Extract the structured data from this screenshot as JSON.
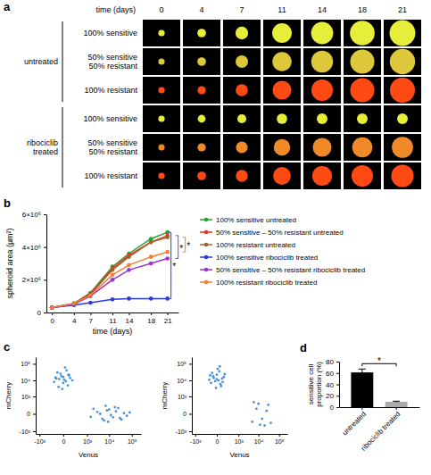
{
  "chart_data": [
    {
      "type": "image_grid",
      "panel": "a",
      "x_label": "time (days)",
      "x": [
        0,
        4,
        7,
        11,
        14,
        18,
        21
      ],
      "groups": [
        "untreated",
        "ribociclib treated"
      ],
      "rows": [
        "100% sensitive",
        "50% sensitive 50% resistant",
        "100% resistant",
        "100% sensitive",
        "50% sensitive 50% resistant",
        "100% resistant"
      ],
      "colors": [
        "#e6ee3a",
        "#dcc83a",
        "#ff4a14",
        "#e6ee3a",
        "#f08a28",
        "#ff4a14"
      ]
    },
    {
      "type": "line",
      "panel": "b",
      "x_label": "time (days)",
      "y_label": "spheroid area (µm²)",
      "x": [
        0,
        4,
        7,
        11,
        14,
        18,
        21
      ],
      "xlim": [
        -1,
        23
      ],
      "xticks": [
        0,
        4,
        7,
        11,
        14,
        18,
        21
      ],
      "ylim": [
        0,
        6000000
      ],
      "yticks": [
        0,
        {
          "value": 2000000,
          "label": "2×10⁶"
        },
        {
          "value": 4000000,
          "label": "4×10⁶"
        },
        {
          "value": 6000000,
          "label": "6×10⁶"
        }
      ],
      "legend": "right",
      "annotations": [
        "*",
        "*",
        "*"
      ],
      "series": [
        {
          "name": "100% sensitive untreated",
          "color": "#2ca02c",
          "values": [
            300000,
            550000,
            1200000,
            2800000,
            3600000,
            4500000,
            4900000
          ]
        },
        {
          "name": "50% sensitive – 50% resistant untreated",
          "color": "#e8312a",
          "values": [
            300000,
            550000,
            1150000,
            2700000,
            3500000,
            4300000,
            4700000
          ]
        },
        {
          "name": "100% resistant untreated",
          "color": "#a0642a",
          "values": [
            300000,
            500000,
            1100000,
            2600000,
            3400000,
            4300000,
            4600000
          ]
        },
        {
          "name": "100% sensitive ribociclib treated",
          "color": "#2b3bd6",
          "values": [
            300000,
            450000,
            600000,
            800000,
            850000,
            850000,
            850000
          ]
        },
        {
          "name": "50% sensitive – 50% resistant ribociclib treated",
          "color": "#a030d0",
          "values": [
            300000,
            500000,
            1000000,
            2000000,
            2600000,
            3000000,
            3300000
          ]
        },
        {
          "name": "100% resistant ribociclib treated",
          "color": "#f08030",
          "values": [
            300000,
            550000,
            1050000,
            2300000,
            2900000,
            3400000,
            3700000
          ]
        }
      ]
    },
    {
      "type": "scatter",
      "panel": "c",
      "x_label": "Venus",
      "y_label": "mCherry",
      "log": true,
      "xlim": [
        -1500,
        250000
      ],
      "ylim": [
        -1500,
        250000
      ],
      "xticks": [
        {
          "value": -1000,
          "label": "-10³"
        },
        0,
        {
          "value": 1000,
          "label": "10³"
        },
        {
          "value": 10000,
          "label": "10⁴"
        },
        {
          "value": 100000,
          "label": "10⁵"
        }
      ],
      "yticks": [
        {
          "value": -1000,
          "label": "-10³"
        },
        0,
        {
          "value": 1000,
          "label": "10³"
        },
        {
          "value": 10000,
          "label": "10⁴"
        },
        {
          "value": 100000,
          "label": "10⁵"
        }
      ],
      "series": [
        {
          "color": "#2a7fd4",
          "x": [
            -50,
            30,
            -120,
            80,
            0,
            -30,
            60,
            -80,
            10,
            100,
            -150,
            40,
            -20,
            150,
            -60,
            20,
            -100,
            70,
            -10,
            0,
            1500,
            3000,
            5000,
            8000,
            12000,
            20000,
            30000,
            45000,
            2000,
            6000,
            10000,
            15000,
            25000,
            60000,
            4000,
            9000,
            18000,
            35000,
            7000,
            80000
          ],
          "values": [
            12000,
            9000,
            15000,
            20000,
            7000,
            25000,
            5000,
            30000,
            11000,
            14000,
            8000,
            40000,
            18000,
            10000,
            4000,
            60000,
            13000,
            22000,
            3000,
            16000,
            -50,
            30,
            -100,
            60,
            -20,
            40,
            -80,
            10,
            100,
            -150,
            80,
            -60,
            120,
            -30,
            0,
            -200,
            150,
            -120,
            200,
            20
          ]
        }
      ]
    },
    {
      "type": "scatter",
      "x_label": "Venus",
      "y_label": "mCherry",
      "log": true,
      "xlim": [
        -1500,
        250000
      ],
      "ylim": [
        -1500,
        250000
      ],
      "xticks": [
        {
          "value": -1000,
          "label": "-10³"
        },
        0,
        {
          "value": 1000,
          "label": "10³"
        },
        {
          "value": 10000,
          "label": "10⁴"
        },
        {
          "value": 100000,
          "label": "10⁵"
        }
      ],
      "yticks": [
        {
          "value": -1000,
          "label": "-10³"
        },
        0,
        {
          "value": 1000,
          "label": "10³"
        },
        {
          "value": 10000,
          "label": "10⁴"
        },
        {
          "value": 100000,
          "label": "10⁵"
        }
      ],
      "series": [
        {
          "color": "#2a7fd4",
          "x": [
            20,
            -40,
            90,
            -110,
            0,
            50,
            -70,
            120,
            -20,
            30,
            -130,
            60,
            10,
            -90,
            140,
            -50,
            80,
            -10,
            0,
            40,
            5000,
            10000,
            20000,
            8000,
            15000,
            30000,
            12000,
            25000,
            6000,
            40000
          ],
          "values": [
            10000,
            14000,
            8000,
            20000,
            12000,
            6000,
            28000,
            16000,
            9000,
            35000,
            11000,
            4500,
            50000,
            7000,
            24000,
            18000,
            13000,
            3500,
            22000,
            70000,
            -200,
            300,
            -400,
            100,
            -100,
            250,
            -350,
            50,
            400,
            -250
          ]
        }
      ]
    },
    {
      "type": "bar",
      "panel": "d",
      "y_label": "sensitive cell proportion (%)",
      "categories": [
        "untreated",
        "ribociclib treated"
      ],
      "values": [
        61,
        9.5
      ],
      "errors": [
        6,
        1
      ],
      "colors": [
        "#000000",
        "#aaaaaa"
      ],
      "ylim": [
        0,
        80
      ],
      "yticks": [
        0,
        20,
        40,
        60,
        80
      ],
      "annotations": [
        "*"
      ]
    }
  ]
}
